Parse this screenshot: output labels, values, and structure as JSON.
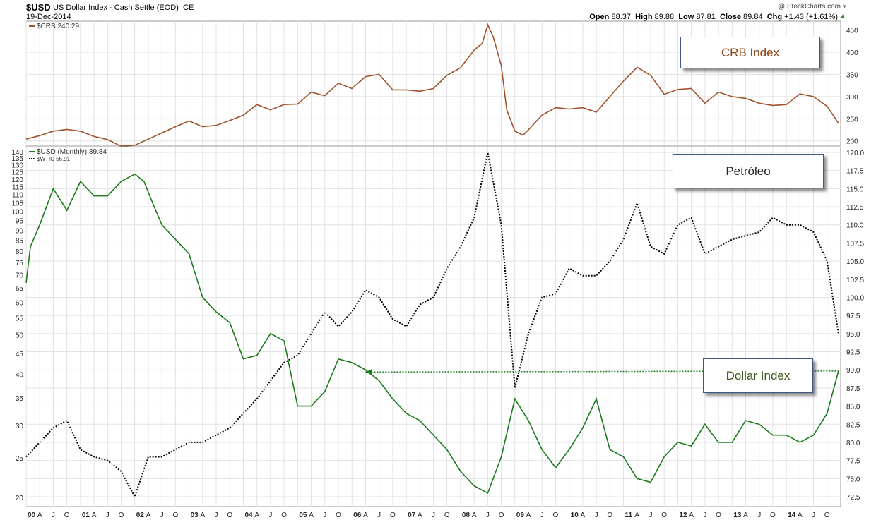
{
  "header": {
    "symbol": "$USD",
    "description": "US Dollar Index - Cash Settle (EOD)",
    "exchange": "ICE",
    "date": "19-Dec-2014",
    "credit": "@ StockCharts.com",
    "quote": {
      "open_label": "Open",
      "open": "88.37",
      "high_label": "High",
      "high": "89.88",
      "low_label": "Low",
      "low": "87.81",
      "close_label": "Close",
      "close": "89.84",
      "chg_label": "Chg",
      "chg": "+1.43 (+1.61%)"
    }
  },
  "annotations": {
    "crb": "CRB Index",
    "petroleo": "Petróleo",
    "dollar": "Dollar Index"
  },
  "colors": {
    "crb": "#a0522d",
    "usd": "#1a7a1a",
    "wtic": "#000000",
    "grid": "#e2e2e2",
    "crb_label": "#8b4513",
    "petroleo_label": "#222222",
    "dollar_label": "#3a5a18"
  },
  "chart_data": [
    {
      "type": "line",
      "title": "$CRB 240.29",
      "legend": [
        "$CRB 240.29"
      ],
      "y_ticks": [
        200,
        250,
        300,
        350,
        400,
        450
      ],
      "ylim": [
        190,
        470
      ],
      "x_ticks": [
        "00",
        "A",
        "J",
        "O",
        "01",
        "A",
        "J",
        "O",
        "02",
        "A",
        "J",
        "O",
        "03",
        "A",
        "J",
        "O",
        "04",
        "A",
        "J",
        "O",
        "05",
        "A",
        "J",
        "O",
        "06",
        "A",
        "J",
        "O",
        "07",
        "A",
        "J",
        "O",
        "08",
        "A",
        "J",
        "O",
        "09",
        "A",
        "J",
        "O",
        "10",
        "A",
        "J",
        "O",
        "11",
        "A",
        "J",
        "O",
        "12",
        "A",
        "J",
        "O",
        "13",
        "A",
        "J",
        "O",
        "14",
        "A",
        "J",
        "O"
      ],
      "x_range": [
        2000.0,
        2015.0
      ],
      "series": [
        {
          "name": "$CRB",
          "points": [
            [
              2000.0,
              204
            ],
            [
              2000.25,
              212
            ],
            [
              2000.5,
              222
            ],
            [
              2000.75,
              226
            ],
            [
              2001.0,
              222
            ],
            [
              2001.25,
              210
            ],
            [
              2001.5,
              203
            ],
            [
              2001.75,
              188
            ],
            [
              2002.0,
              190
            ],
            [
              2002.25,
              204
            ],
            [
              2002.5,
              218
            ],
            [
              2002.75,
              232
            ],
            [
              2003.0,
              245
            ],
            [
              2003.25,
              232
            ],
            [
              2003.5,
              235
            ],
            [
              2003.75,
              246
            ],
            [
              2004.0,
              258
            ],
            [
              2004.25,
              282
            ],
            [
              2004.5,
              270
            ],
            [
              2004.75,
              282
            ],
            [
              2005.0,
              283
            ],
            [
              2005.25,
              310
            ],
            [
              2005.5,
              302
            ],
            [
              2005.75,
              330
            ],
            [
              2006.0,
              318
            ],
            [
              2006.25,
              345
            ],
            [
              2006.5,
              350
            ],
            [
              2006.75,
              315
            ],
            [
              2007.0,
              315
            ],
            [
              2007.25,
              312
            ],
            [
              2007.5,
              318
            ],
            [
              2007.75,
              348
            ],
            [
              2008.0,
              365
            ],
            [
              2008.25,
              405
            ],
            [
              2008.4,
              420
            ],
            [
              2008.5,
              462
            ],
            [
              2008.6,
              435
            ],
            [
              2008.75,
              370
            ],
            [
              2008.85,
              270
            ],
            [
              2009.0,
              222
            ],
            [
              2009.15,
              213
            ],
            [
              2009.25,
              225
            ],
            [
              2009.5,
              258
            ],
            [
              2009.75,
              275
            ],
            [
              2010.0,
              272
            ],
            [
              2010.25,
              275
            ],
            [
              2010.5,
              265
            ],
            [
              2010.75,
              300
            ],
            [
              2011.0,
              335
            ],
            [
              2011.25,
              366
            ],
            [
              2011.5,
              348
            ],
            [
              2011.75,
              305
            ],
            [
              2012.0,
              316
            ],
            [
              2012.25,
              318
            ],
            [
              2012.5,
              285
            ],
            [
              2012.75,
              310
            ],
            [
              2013.0,
              300
            ],
            [
              2013.25,
              296
            ],
            [
              2013.5,
              285
            ],
            [
              2013.75,
              280
            ],
            [
              2014.0,
              282
            ],
            [
              2014.25,
              306
            ],
            [
              2014.5,
              300
            ],
            [
              2014.75,
              278
            ],
            [
              2014.96,
              240
            ]
          ]
        }
      ]
    },
    {
      "type": "line",
      "title": "$USD (Monthly) 89.84",
      "legend": [
        "$USD (Monthly) 89.84",
        "$WTIC 56.91"
      ],
      "y_ticks_left": [
        20,
        25,
        30,
        35,
        40,
        45,
        50,
        55,
        60,
        65,
        70,
        75,
        80,
        85,
        90,
        95,
        100,
        105,
        110,
        115,
        120,
        125,
        130,
        135,
        140
      ],
      "y_ticks_right": [
        72.5,
        75.0,
        77.5,
        80.0,
        82.5,
        85.0,
        87.5,
        90.0,
        92.5,
        95.0,
        97.5,
        100.0,
        102.5,
        105.0,
        107.5,
        110.0,
        112.5,
        115.0,
        117.5,
        120.0
      ],
      "x_ticks": [
        "00",
        "A",
        "J",
        "O",
        "01",
        "A",
        "J",
        "O",
        "02",
        "A",
        "J",
        "O",
        "03",
        "A",
        "J",
        "O",
        "04",
        "A",
        "J",
        "O",
        "05",
        "A",
        "J",
        "O",
        "06",
        "A",
        "J",
        "O",
        "07",
        "A",
        "J",
        "O",
        "08",
        "A",
        "J",
        "O",
        "09",
        "A",
        "J",
        "O",
        "10",
        "A",
        "J",
        "O",
        "11",
        "A",
        "J",
        "O",
        "12",
        "A",
        "J",
        "O",
        "13",
        "A",
        "J",
        "O",
        "14",
        "A",
        "J",
        "O"
      ],
      "x_range": [
        2000.0,
        2015.0
      ],
      "series": [
        {
          "name": "$USD (Monthly)",
          "points": [
            [
              2000.0,
              102
            ],
            [
              2000.08,
              107
            ],
            [
              2000.25,
              110
            ],
            [
              2000.5,
              115
            ],
            [
              2000.75,
              112
            ],
            [
              2001.0,
              116
            ],
            [
              2001.25,
              114
            ],
            [
              2001.5,
              114
            ],
            [
              2001.75,
              116
            ],
            [
              2002.0,
              117
            ],
            [
              2002.17,
              116
            ],
            [
              2002.33,
              113
            ],
            [
              2002.5,
              110
            ],
            [
              2002.75,
              108
            ],
            [
              2003.0,
              106
            ],
            [
              2003.25,
              100
            ],
            [
              2003.5,
              98
            ],
            [
              2003.75,
              96.5
            ],
            [
              2004.0,
              91.5
            ],
            [
              2004.25,
              92
            ],
            [
              2004.5,
              95
            ],
            [
              2004.75,
              94
            ],
            [
              2005.0,
              85
            ],
            [
              2005.25,
              85
            ],
            [
              2005.5,
              87
            ],
            [
              2005.75,
              91.5
            ],
            [
              2006.0,
              91
            ],
            [
              2006.25,
              90
            ],
            [
              2006.5,
              88.5
            ],
            [
              2006.75,
              86
            ],
            [
              2007.0,
              84
            ],
            [
              2007.25,
              83
            ],
            [
              2007.5,
              81
            ],
            [
              2007.75,
              79
            ],
            [
              2008.0,
              76
            ],
            [
              2008.25,
              74
            ],
            [
              2008.5,
              73
            ],
            [
              2008.75,
              78
            ],
            [
              2009.0,
              86
            ],
            [
              2009.25,
              83
            ],
            [
              2009.5,
              79
            ],
            [
              2009.75,
              76.5
            ],
            [
              2010.0,
              79
            ],
            [
              2010.25,
              82
            ],
            [
              2010.5,
              86
            ],
            [
              2010.75,
              79
            ],
            [
              2011.0,
              78
            ],
            [
              2011.25,
              75
            ],
            [
              2011.5,
              74.5
            ],
            [
              2011.75,
              78
            ],
            [
              2012.0,
              80
            ],
            [
              2012.25,
              79.5
            ],
            [
              2012.5,
              82.5
            ],
            [
              2012.75,
              80
            ],
            [
              2013.0,
              80
            ],
            [
              2013.25,
              83
            ],
            [
              2013.5,
              82.5
            ],
            [
              2013.75,
              81
            ],
            [
              2014.0,
              81
            ],
            [
              2014.25,
              80
            ],
            [
              2014.5,
              81
            ],
            [
              2014.75,
              84
            ],
            [
              2014.96,
              89.84
            ]
          ]
        },
        {
          "name": "$WTIC",
          "points": [
            [
              2000.0,
              78
            ],
            [
              2000.25,
              80
            ],
            [
              2000.5,
              82
            ],
            [
              2000.75,
              83
            ],
            [
              2001.0,
              79
            ],
            [
              2001.25,
              78
            ],
            [
              2001.5,
              77.5
            ],
            [
              2001.75,
              76
            ],
            [
              2002.0,
              72.5
            ],
            [
              2002.25,
              78
            ],
            [
              2002.5,
              78
            ],
            [
              2002.75,
              79
            ],
            [
              2003.0,
              80
            ],
            [
              2003.25,
              80
            ],
            [
              2003.5,
              81
            ],
            [
              2003.75,
              82
            ],
            [
              2004.0,
              84
            ],
            [
              2004.25,
              86
            ],
            [
              2004.5,
              88.5
            ],
            [
              2004.75,
              91
            ],
            [
              2005.0,
              92
            ],
            [
              2005.25,
              95
            ],
            [
              2005.5,
              98
            ],
            [
              2005.75,
              96
            ],
            [
              2006.0,
              98
            ],
            [
              2006.25,
              101
            ],
            [
              2006.5,
              100
            ],
            [
              2006.75,
              97
            ],
            [
              2007.0,
              96
            ],
            [
              2007.25,
              99
            ],
            [
              2007.5,
              100
            ],
            [
              2007.75,
              104
            ],
            [
              2008.0,
              107
            ],
            [
              2008.25,
              111
            ],
            [
              2008.5,
              120
            ],
            [
              2008.75,
              110
            ],
            [
              2009.0,
              87.5
            ],
            [
              2009.25,
              95
            ],
            [
              2009.5,
              100
            ],
            [
              2009.75,
              100.5
            ],
            [
              2010.0,
              104
            ],
            [
              2010.25,
              103
            ],
            [
              2010.5,
              103
            ],
            [
              2010.75,
              105
            ],
            [
              2011.0,
              108
            ],
            [
              2011.25,
              113
            ],
            [
              2011.5,
              107
            ],
            [
              2011.75,
              106
            ],
            [
              2012.0,
              110
            ],
            [
              2012.25,
              111
            ],
            [
              2012.5,
              106
            ],
            [
              2012.75,
              107
            ],
            [
              2013.0,
              108
            ],
            [
              2013.25,
              108.5
            ],
            [
              2013.5,
              109
            ],
            [
              2013.75,
              111
            ],
            [
              2014.0,
              110
            ],
            [
              2014.25,
              110
            ],
            [
              2014.5,
              109
            ],
            [
              2014.75,
              105
            ],
            [
              2014.96,
              95
            ]
          ]
        }
      ],
      "reference_line": {
        "from": [
          2006.25,
          89.7
        ],
        "to": [
          2014.96,
          89.84
        ],
        "style": "dotted",
        "color": "#1a7a1a"
      }
    }
  ]
}
